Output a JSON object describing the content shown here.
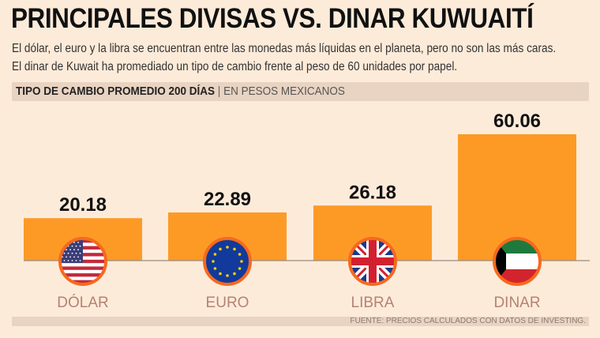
{
  "title": "PRINCIPALES DIVISAS VS. DINAR KUWUAITÍ",
  "subtitle": "El dólar, el euro y la libra se encuentran entre las monedas más líquidas en el planeta, pero no son las más caras. El dinar de Kuwait ha promediado un tipo de cambio frente al peso de 60 unidades por papel.",
  "header": {
    "label": "TIPO DE CAMBIO PROMEDIO 200 DÍAS",
    "separator": "|",
    "unit": "EN PESOS MEXICANOS"
  },
  "source": "FUENTE: PRECIOS CALCULADOS CON DATOS DE INVESTING.",
  "colors": {
    "bar": "#fd9a26",
    "value_text": "#111111",
    "category_text": "#b58274",
    "flag_border": "#f7691d",
    "background": "#fdebd9"
  },
  "chart_data": {
    "type": "bar",
    "categories": [
      "DÓLAR",
      "EURO",
      "LIBRA",
      "DINAR"
    ],
    "values": [
      20.18,
      22.89,
      26.18,
      60.06
    ],
    "value_labels": [
      "20.18",
      "22.89",
      "26.18",
      "60.06"
    ],
    "icons": [
      "us-flag-icon",
      "eu-flag-icon",
      "uk-flag-icon",
      "kuwait-flag-icon"
    ],
    "ylim": [
      0,
      60.06
    ],
    "grid": false,
    "legend": "none"
  }
}
